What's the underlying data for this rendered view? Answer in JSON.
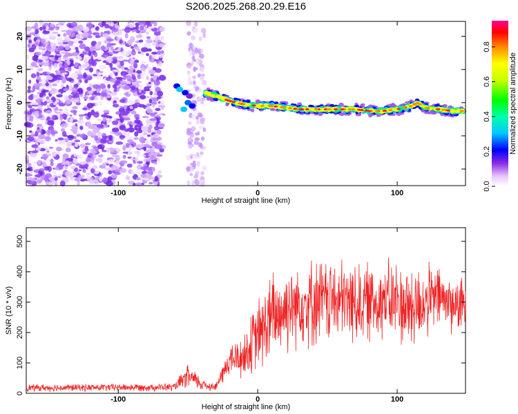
{
  "title": "S206.2025.268.20.29.E16",
  "chart_data": [
    {
      "type": "heatmap",
      "panel": "spectrogram",
      "xlabel": "Height of straight line (km)",
      "ylabel": "Frequency (Hz)",
      "xlim": [
        -166,
        149
      ],
      "ylim": [
        -25,
        24.5
      ],
      "xticks": [
        "-100",
        "0",
        "100"
      ],
      "yticks": [
        "-20",
        "-10",
        "0",
        "10",
        "20"
      ],
      "colorbar": {
        "label": "Normalized spectral amplitude",
        "range": [
          0,
          0.95
        ],
        "ticks": [
          "0.0",
          "0.2",
          "0.4",
          "0.6",
          "0.8"
        ]
      },
      "ridge": {
        "x_km": [
          -38,
          -30,
          -20,
          -10,
          0,
          10,
          20,
          30,
          40,
          50,
          60,
          70,
          80,
          90,
          100,
          110,
          115,
          120,
          130,
          140,
          148
        ],
        "freq_hz": [
          3,
          2,
          0.5,
          -0.5,
          -1,
          -1,
          -1.5,
          -2,
          -2,
          -2,
          -2,
          -2,
          -2.5,
          -2.5,
          -2,
          -1,
          0,
          -1.5,
          -2,
          -2.5,
          -2.5
        ]
      },
      "noise_region_km": [
        -166,
        -68
      ],
      "noise_column_km": [
        -50,
        -38
      ]
    },
    {
      "type": "line",
      "panel": "snr",
      "xlabel": "Height of straight line (km)",
      "ylabel": "SNR (10 * v/v)",
      "xlim": [
        -166,
        149
      ],
      "ylim": [
        0,
        545
      ],
      "xticks": [
        "-100",
        "0",
        "100"
      ],
      "yticks": [
        "0",
        "100",
        "200",
        "300",
        "400",
        "500"
      ],
      "series": [
        {
          "name": "SNR",
          "color": "#ee2222",
          "envelope_x_km": [
            -166,
            -60,
            -50,
            -40,
            -30,
            -20,
            -10,
            0,
            10,
            20,
            30,
            40,
            50,
            60,
            70,
            80,
            90,
            100,
            110,
            120,
            130,
            140,
            149
          ],
          "mean": [
            18,
            20,
            55,
            30,
            20,
            110,
            120,
            190,
            245,
            280,
            300,
            300,
            305,
            300,
            300,
            300,
            310,
            300,
            280,
            300,
            320,
            290,
            290
          ],
          "amplitude": [
            14,
            15,
            45,
            25,
            15,
            60,
            90,
            140,
            180,
            170,
            160,
            170,
            160,
            160,
            160,
            150,
            150,
            160,
            170,
            140,
            120,
            110,
            100
          ]
        }
      ]
    }
  ]
}
